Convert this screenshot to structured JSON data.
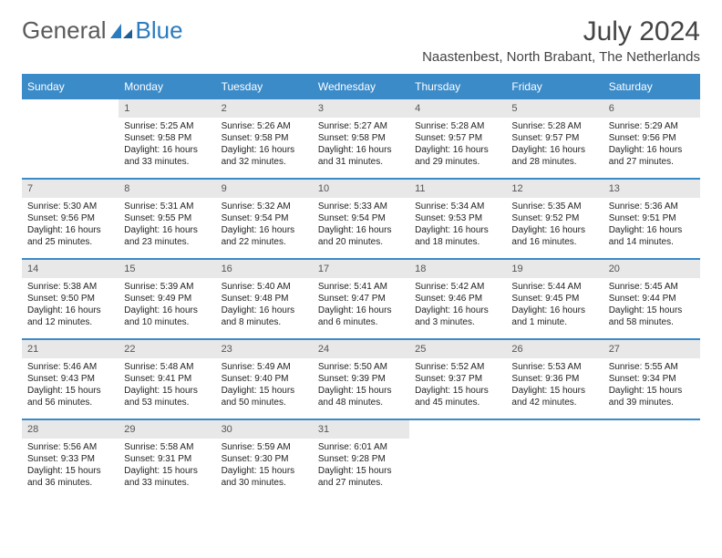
{
  "logo": {
    "text1": "General",
    "text2": "Blue"
  },
  "title": "July 2024",
  "location": "Naastenbest, North Brabant, The Netherlands",
  "colors": {
    "header_bg": "#3b8bc9",
    "header_text": "#ffffff",
    "daynum_bg": "#e8e8e8",
    "border": "#3b8bc9"
  },
  "weekdays": [
    "Sunday",
    "Monday",
    "Tuesday",
    "Wednesday",
    "Thursday",
    "Friday",
    "Saturday"
  ],
  "start_offset": 1,
  "days": [
    {
      "n": 1,
      "sr": "5:25 AM",
      "ss": "9:58 PM",
      "dl": "16 hours and 33 minutes."
    },
    {
      "n": 2,
      "sr": "5:26 AM",
      "ss": "9:58 PM",
      "dl": "16 hours and 32 minutes."
    },
    {
      "n": 3,
      "sr": "5:27 AM",
      "ss": "9:58 PM",
      "dl": "16 hours and 31 minutes."
    },
    {
      "n": 4,
      "sr": "5:28 AM",
      "ss": "9:57 PM",
      "dl": "16 hours and 29 minutes."
    },
    {
      "n": 5,
      "sr": "5:28 AM",
      "ss": "9:57 PM",
      "dl": "16 hours and 28 minutes."
    },
    {
      "n": 6,
      "sr": "5:29 AM",
      "ss": "9:56 PM",
      "dl": "16 hours and 27 minutes."
    },
    {
      "n": 7,
      "sr": "5:30 AM",
      "ss": "9:56 PM",
      "dl": "16 hours and 25 minutes."
    },
    {
      "n": 8,
      "sr": "5:31 AM",
      "ss": "9:55 PM",
      "dl": "16 hours and 23 minutes."
    },
    {
      "n": 9,
      "sr": "5:32 AM",
      "ss": "9:54 PM",
      "dl": "16 hours and 22 minutes."
    },
    {
      "n": 10,
      "sr": "5:33 AM",
      "ss": "9:54 PM",
      "dl": "16 hours and 20 minutes."
    },
    {
      "n": 11,
      "sr": "5:34 AM",
      "ss": "9:53 PM",
      "dl": "16 hours and 18 minutes."
    },
    {
      "n": 12,
      "sr": "5:35 AM",
      "ss": "9:52 PM",
      "dl": "16 hours and 16 minutes."
    },
    {
      "n": 13,
      "sr": "5:36 AM",
      "ss": "9:51 PM",
      "dl": "16 hours and 14 minutes."
    },
    {
      "n": 14,
      "sr": "5:38 AM",
      "ss": "9:50 PM",
      "dl": "16 hours and 12 minutes."
    },
    {
      "n": 15,
      "sr": "5:39 AM",
      "ss": "9:49 PM",
      "dl": "16 hours and 10 minutes."
    },
    {
      "n": 16,
      "sr": "5:40 AM",
      "ss": "9:48 PM",
      "dl": "16 hours and 8 minutes."
    },
    {
      "n": 17,
      "sr": "5:41 AM",
      "ss": "9:47 PM",
      "dl": "16 hours and 6 minutes."
    },
    {
      "n": 18,
      "sr": "5:42 AM",
      "ss": "9:46 PM",
      "dl": "16 hours and 3 minutes."
    },
    {
      "n": 19,
      "sr": "5:44 AM",
      "ss": "9:45 PM",
      "dl": "16 hours and 1 minute."
    },
    {
      "n": 20,
      "sr": "5:45 AM",
      "ss": "9:44 PM",
      "dl": "15 hours and 58 minutes."
    },
    {
      "n": 21,
      "sr": "5:46 AM",
      "ss": "9:43 PM",
      "dl": "15 hours and 56 minutes."
    },
    {
      "n": 22,
      "sr": "5:48 AM",
      "ss": "9:41 PM",
      "dl": "15 hours and 53 minutes."
    },
    {
      "n": 23,
      "sr": "5:49 AM",
      "ss": "9:40 PM",
      "dl": "15 hours and 50 minutes."
    },
    {
      "n": 24,
      "sr": "5:50 AM",
      "ss": "9:39 PM",
      "dl": "15 hours and 48 minutes."
    },
    {
      "n": 25,
      "sr": "5:52 AM",
      "ss": "9:37 PM",
      "dl": "15 hours and 45 minutes."
    },
    {
      "n": 26,
      "sr": "5:53 AM",
      "ss": "9:36 PM",
      "dl": "15 hours and 42 minutes."
    },
    {
      "n": 27,
      "sr": "5:55 AM",
      "ss": "9:34 PM",
      "dl": "15 hours and 39 minutes."
    },
    {
      "n": 28,
      "sr": "5:56 AM",
      "ss": "9:33 PM",
      "dl": "15 hours and 36 minutes."
    },
    {
      "n": 29,
      "sr": "5:58 AM",
      "ss": "9:31 PM",
      "dl": "15 hours and 33 minutes."
    },
    {
      "n": 30,
      "sr": "5:59 AM",
      "ss": "9:30 PM",
      "dl": "15 hours and 30 minutes."
    },
    {
      "n": 31,
      "sr": "6:01 AM",
      "ss": "9:28 PM",
      "dl": "15 hours and 27 minutes."
    }
  ],
  "labels": {
    "sunrise": "Sunrise:",
    "sunset": "Sunset:",
    "daylight": "Daylight:"
  }
}
